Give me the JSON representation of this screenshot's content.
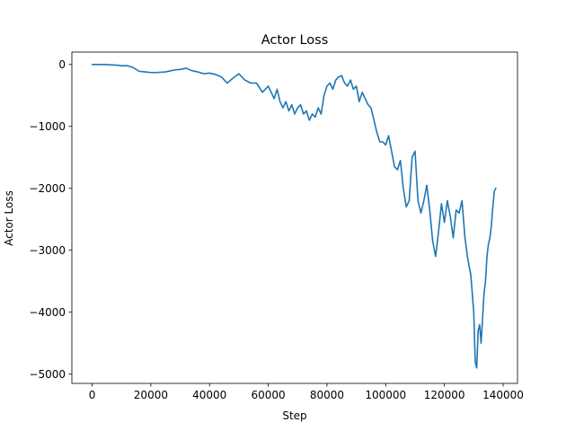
{
  "chart_data": {
    "type": "line",
    "title": "Actor Loss",
    "xlabel": "Step",
    "ylabel": "Actor Loss",
    "xlim": [
      -6900,
      144900
    ],
    "ylim": [
      -5150,
      200
    ],
    "xticks": [
      0,
      20000,
      40000,
      60000,
      80000,
      100000,
      120000,
      140000
    ],
    "xtick_labels": [
      "0",
      "20000",
      "40000",
      "60000",
      "80000",
      "100000",
      "120000",
      "140000"
    ],
    "yticks": [
      0,
      -1000,
      -2000,
      -3000,
      -4000,
      -5000
    ],
    "ytick_labels": [
      "0",
      "−1000",
      "−2000",
      "−3000",
      "−4000",
      "−5000"
    ],
    "grid": false,
    "color": "#1f77b4",
    "series": [
      {
        "x": [
          0,
          4000,
          8000,
          10000,
          12000,
          14000,
          16000,
          18000,
          20000,
          22000,
          25000,
          28000,
          30000,
          32000,
          34000,
          36000,
          38000,
          40000,
          42000,
          44000,
          46000,
          48000,
          50000,
          52000,
          54000,
          56000,
          58000,
          60000,
          62000,
          63000,
          64000,
          65000,
          66000,
          67000,
          68000,
          69000,
          70000,
          71000,
          72000,
          73000,
          74000,
          75000,
          76000,
          77000,
          78000,
          79000,
          80000,
          81000,
          82000,
          83000,
          84000,
          85000,
          86000,
          87000,
          88000,
          89000,
          90000,
          91000,
          92000,
          93000,
          94000,
          95000,
          96000,
          97000,
          98000,
          99000,
          100000,
          101000,
          102000,
          103000,
          104000,
          105000,
          106000,
          107000,
          108000,
          109000,
          110000,
          111000,
          112000,
          113000,
          114000,
          115000,
          116000,
          117000,
          118000,
          119000,
          120000,
          121000,
          122000,
          123000,
          124000,
          125000,
          126000,
          127000,
          128000,
          129000,
          130000,
          130500,
          131000,
          131500,
          132000,
          132500,
          133000,
          133500,
          134000,
          134500,
          135000,
          135500,
          136000,
          136500,
          137000,
          137500
        ],
        "y": [
          0,
          0,
          -10,
          -20,
          -20,
          -50,
          -110,
          -120,
          -130,
          -130,
          -120,
          -90,
          -80,
          -60,
          -100,
          -120,
          -150,
          -140,
          -160,
          -200,
          -300,
          -220,
          -150,
          -250,
          -300,
          -300,
          -450,
          -350,
          -550,
          -400,
          -600,
          -700,
          -600,
          -750,
          -650,
          -800,
          -700,
          -650,
          -800,
          -750,
          -900,
          -800,
          -850,
          -700,
          -800,
          -500,
          -350,
          -300,
          -400,
          -250,
          -200,
          -180,
          -300,
          -350,
          -250,
          -400,
          -350,
          -600,
          -450,
          -550,
          -650,
          -700,
          -900,
          -1100,
          -1250,
          -1250,
          -1300,
          -1150,
          -1400,
          -1650,
          -1700,
          -1550,
          -2000,
          -2300,
          -2200,
          -1500,
          -1400,
          -2200,
          -2400,
          -2200,
          -1950,
          -2350,
          -2850,
          -3100,
          -2700,
          -2250,
          -2550,
          -2200,
          -2450,
          -2800,
          -2350,
          -2400,
          -2200,
          -2800,
          -3150,
          -3400,
          -4000,
          -4800,
          -4900,
          -4300,
          -4200,
          -4500,
          -4100,
          -3700,
          -3500,
          -3100,
          -2900,
          -2800,
          -2600,
          -2300,
          -2050,
          -2000
        ]
      }
    ]
  }
}
